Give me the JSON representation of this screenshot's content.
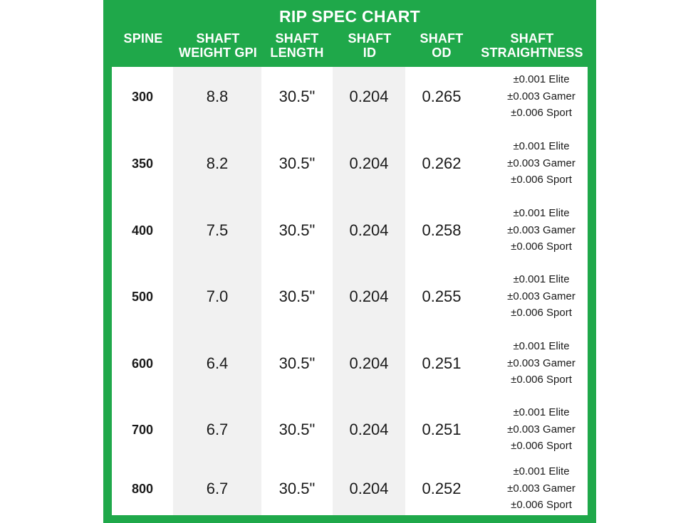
{
  "title": "RIP SPEC CHART",
  "headers": [
    {
      "line1": "SPINE",
      "line2": ""
    },
    {
      "line1": "SHAFT",
      "line2": "WEIGHT GPI"
    },
    {
      "line1": "SHAFT",
      "line2": "LENGTH"
    },
    {
      "line1": "SHAFT",
      "line2": "ID"
    },
    {
      "line1": "SHAFT",
      "line2": "OD"
    },
    {
      "line1": "SHAFT",
      "line2": "STRAIGHTNESS"
    }
  ],
  "rows": [
    {
      "spine": "300",
      "weight": "8.8",
      "length": "30.5\"",
      "id": "0.204",
      "od": "0.265",
      "straightness": [
        "±0.001 Elite",
        "±0.003 Gamer",
        "±0.006 Sport"
      ]
    },
    {
      "spine": "350",
      "weight": "8.2",
      "length": "30.5\"",
      "id": "0.204",
      "od": "0.262",
      "straightness": [
        "±0.001 Elite",
        "±0.003 Gamer",
        "±0.006 Sport"
      ]
    },
    {
      "spine": "400",
      "weight": "7.5",
      "length": "30.5\"",
      "id": "0.204",
      "od": "0.258",
      "straightness": [
        "±0.001 Elite",
        "±0.003 Gamer",
        "±0.006 Sport"
      ]
    },
    {
      "spine": "500",
      "weight": "7.0",
      "length": "30.5\"",
      "id": "0.204",
      "od": "0.255",
      "straightness": [
        "±0.001 Elite",
        "±0.003 Gamer",
        "±0.006 Sport"
      ]
    },
    {
      "spine": "600",
      "weight": "6.4",
      "length": "30.5\"",
      "id": "0.204",
      "od": "0.251",
      "straightness": [
        "±0.001 Elite",
        "±0.003 Gamer",
        "±0.006 Sport"
      ]
    },
    {
      "spine": "700",
      "weight": "6.7",
      "length": "30.5\"",
      "id": "0.204",
      "od": "0.251",
      "straightness": [
        "±0.001 Elite",
        "±0.003 Gamer",
        "±0.006 Sport"
      ]
    },
    {
      "spine": "800",
      "weight": "6.7",
      "length": "30.5\"",
      "id": "0.204",
      "od": "0.252",
      "straightness": [
        "±0.001 Elite",
        "±0.003 Gamer",
        "±0.006 Sport"
      ]
    }
  ],
  "colors": {
    "brand_green": "#1fa84a",
    "shaded_column": "#f1f1f1",
    "text": "#1a1a1a"
  }
}
